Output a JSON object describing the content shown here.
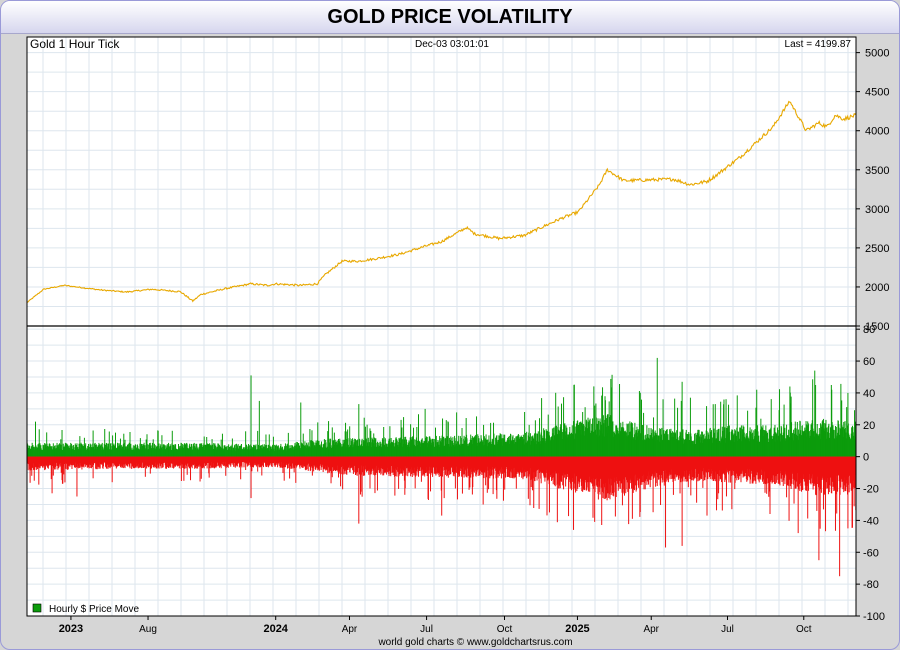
{
  "title": "GOLD PRICE VOLATILITY",
  "chart_data": [
    {
      "type": "line",
      "title": "Gold 1 Hour Tick",
      "timestamp": "Dec-03  03:01:01",
      "last_label": "Last = 4199.87",
      "last_value": 4199.87,
      "ylim": [
        1500,
        5200
      ],
      "yticks": [
        "5000",
        "4500",
        "4000",
        "3500",
        "3000",
        "2500",
        "2000",
        "1500"
      ],
      "grid": true,
      "color": "#e8a800",
      "x": [
        0,
        0.02,
        0.045,
        0.09,
        0.12,
        0.15,
        0.185,
        0.2,
        0.21,
        0.24,
        0.27,
        0.29,
        0.3,
        0.33,
        0.35,
        0.36,
        0.38,
        0.4,
        0.42,
        0.45,
        0.48,
        0.5,
        0.53,
        0.54,
        0.57,
        0.6,
        0.62,
        0.645,
        0.665,
        0.69,
        0.7,
        0.72,
        0.78,
        0.8,
        0.82,
        0.83,
        0.86,
        0.9,
        0.92,
        0.94,
        0.955,
        0.965,
        0.975,
        0.985,
        1.0
      ],
      "y": [
        1800,
        1970,
        2020,
        1960,
        1935,
        1970,
        1940,
        1820,
        1905,
        1980,
        2040,
        2020,
        2040,
        2020,
        2040,
        2160,
        2330,
        2330,
        2360,
        2420,
        2520,
        2580,
        2760,
        2680,
        2620,
        2660,
        2760,
        2880,
        2960,
        3300,
        3500,
        3360,
        3380,
        3310,
        3350,
        3420,
        3660,
        4050,
        4380,
        4000,
        4100,
        4050,
        4200,
        4150,
        4200
      ]
    },
    {
      "type": "bar",
      "title": "Hourly $ Price Move",
      "legend": "Hourly $ Price Move",
      "legend_position": "bottom-left",
      "ylim": [
        -100,
        82
      ],
      "yticks": [
        "80",
        "60",
        "40",
        "20",
        "0",
        "-20",
        "-40",
        "-60",
        "-80",
        "-100"
      ],
      "grid": true,
      "colors": {
        "up": "#0c9c0c",
        "down": "#ee1111"
      },
      "baseline": 0,
      "envelope_x": [
        0,
        0.1,
        0.2,
        0.3,
        0.35,
        0.4,
        0.5,
        0.6,
        0.7,
        0.75,
        0.8,
        0.85,
        0.9,
        0.95,
        1.0
      ],
      "envelope_up": [
        8,
        8,
        8,
        7,
        10,
        11,
        12,
        14,
        25,
        18,
        15,
        18,
        18,
        22,
        20
      ],
      "envelope_down": [
        -8,
        -7,
        -7,
        -6,
        -9,
        -11,
        -12,
        -13,
        -26,
        -18,
        -14,
        -15,
        -16,
        -22,
        -22
      ],
      "peaks_up": [
        [
          0.01,
          22
        ],
        [
          0.27,
          51
        ],
        [
          0.28,
          35
        ],
        [
          0.33,
          34
        ],
        [
          0.4,
          33
        ],
        [
          0.48,
          30
        ],
        [
          0.6,
          28
        ],
        [
          0.67,
          28
        ],
        [
          0.76,
          62
        ],
        [
          0.79,
          47
        ],
        [
          0.8,
          37
        ],
        [
          0.83,
          33
        ],
        [
          0.88,
          42
        ],
        [
          0.92,
          44
        ],
        [
          0.95,
          54
        ],
        [
          0.97,
          45
        ],
        [
          0.99,
          40
        ]
      ],
      "peaks_down": [
        [
          0.03,
          -23
        ],
        [
          0.06,
          -25
        ],
        [
          0.27,
          -26
        ],
        [
          0.4,
          -42
        ],
        [
          0.5,
          -37
        ],
        [
          0.55,
          -30
        ],
        [
          0.63,
          -35
        ],
        [
          0.77,
          -57
        ],
        [
          0.79,
          -56
        ],
        [
          0.82,
          -37
        ],
        [
          0.85,
          -33
        ],
        [
          0.93,
          -48
        ],
        [
          0.955,
          -65
        ],
        [
          0.98,
          -75
        ],
        [
          0.99,
          -45
        ]
      ]
    }
  ],
  "x_axis_labels": [
    {
      "label": "2023",
      "bold": true,
      "pos": 0.053
    },
    {
      "label": "Aug",
      "bold": false,
      "pos": 0.146
    },
    {
      "label": "2024",
      "bold": true,
      "pos": 0.3
    },
    {
      "label": "Apr",
      "bold": false,
      "pos": 0.389
    },
    {
      "label": "Jul",
      "bold": false,
      "pos": 0.482
    },
    {
      "label": "Oct",
      "bold": false,
      "pos": 0.576
    },
    {
      "label": "2025",
      "bold": true,
      "pos": 0.664
    },
    {
      "label": "Apr",
      "bold": false,
      "pos": 0.753
    },
    {
      "label": "Jul",
      "bold": false,
      "pos": 0.845
    },
    {
      "label": "Oct",
      "bold": false,
      "pos": 0.937
    }
  ],
  "credit": "world gold charts © www.goldchartsrus.com"
}
